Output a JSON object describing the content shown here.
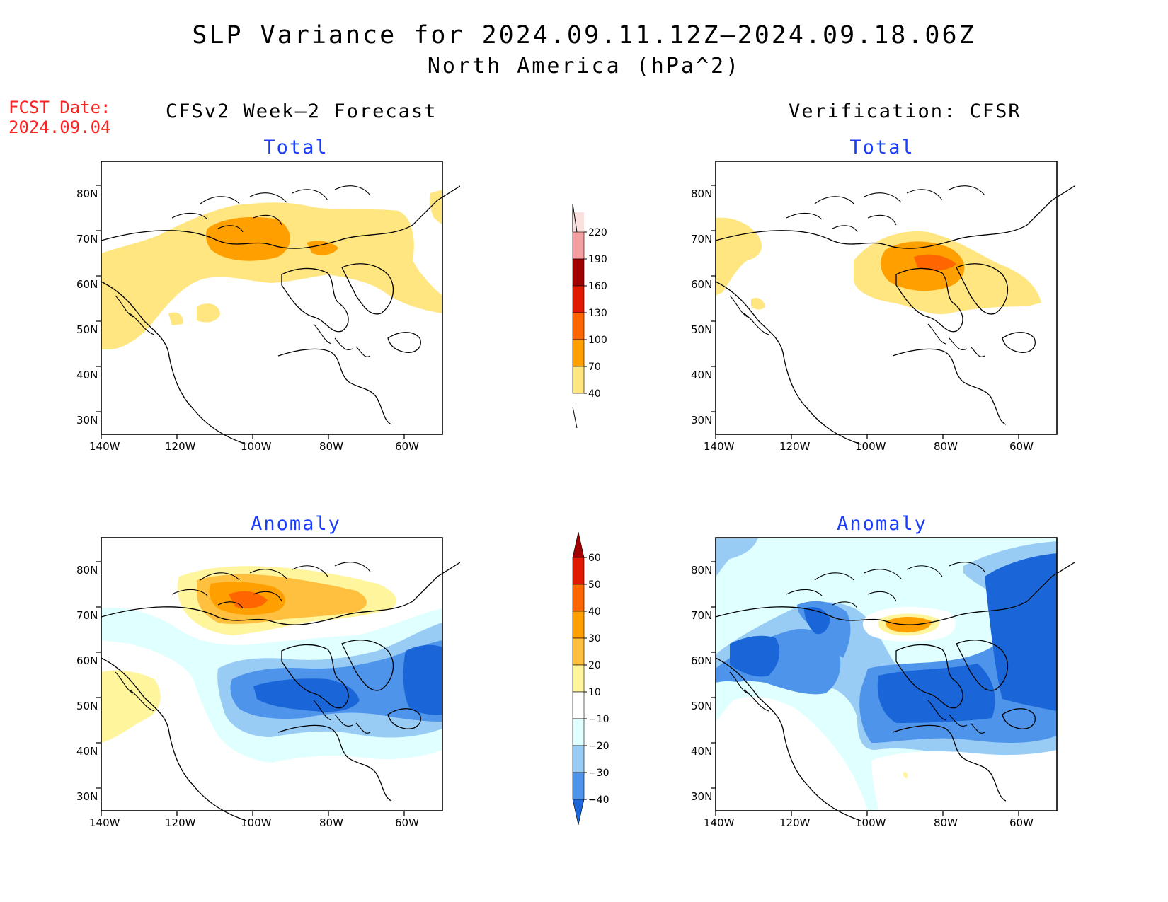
{
  "title_line1": "SLP Variance for 2024.09.11.12Z–2024.09.18.06Z",
  "title_line2": "North America (hPa^2)",
  "fcst_label": "FCST Date:",
  "fcst_date": "2024.09.04",
  "left_column_title": "CFSv2 Week–2 Forecast",
  "right_column_title": "Verification: CFSR",
  "panel_titles": {
    "total": "Total",
    "anomaly": "Anomaly"
  },
  "axes": {
    "lat_labels": [
      "80N",
      "70N",
      "60N",
      "50N",
      "40N",
      "30N"
    ],
    "lon_labels": [
      "140W",
      "120W",
      "100W",
      "80W",
      "60W"
    ]
  },
  "colorbar_total": {
    "levels": [
      "220",
      "190",
      "160",
      "130",
      "100",
      "70",
      "40"
    ],
    "colors": [
      "#fbe0e0",
      "#f4a0a0",
      "#a00000",
      "#e01a00",
      "#ff6600",
      "#ffa000",
      "#ffe680"
    ]
  },
  "colorbar_anomaly": {
    "levels": [
      "60",
      "50",
      "40",
      "30",
      "20",
      "10",
      "−10",
      "−20",
      "−30",
      "−40"
    ],
    "colors": [
      "#a00000",
      "#e01a00",
      "#ff6600",
      "#ffa000",
      "#ffc040",
      "#fff59d",
      "#ffffff",
      "#e0ffff",
      "#99ccf5",
      "#4d94ea",
      "#1a66d9"
    ]
  }
}
